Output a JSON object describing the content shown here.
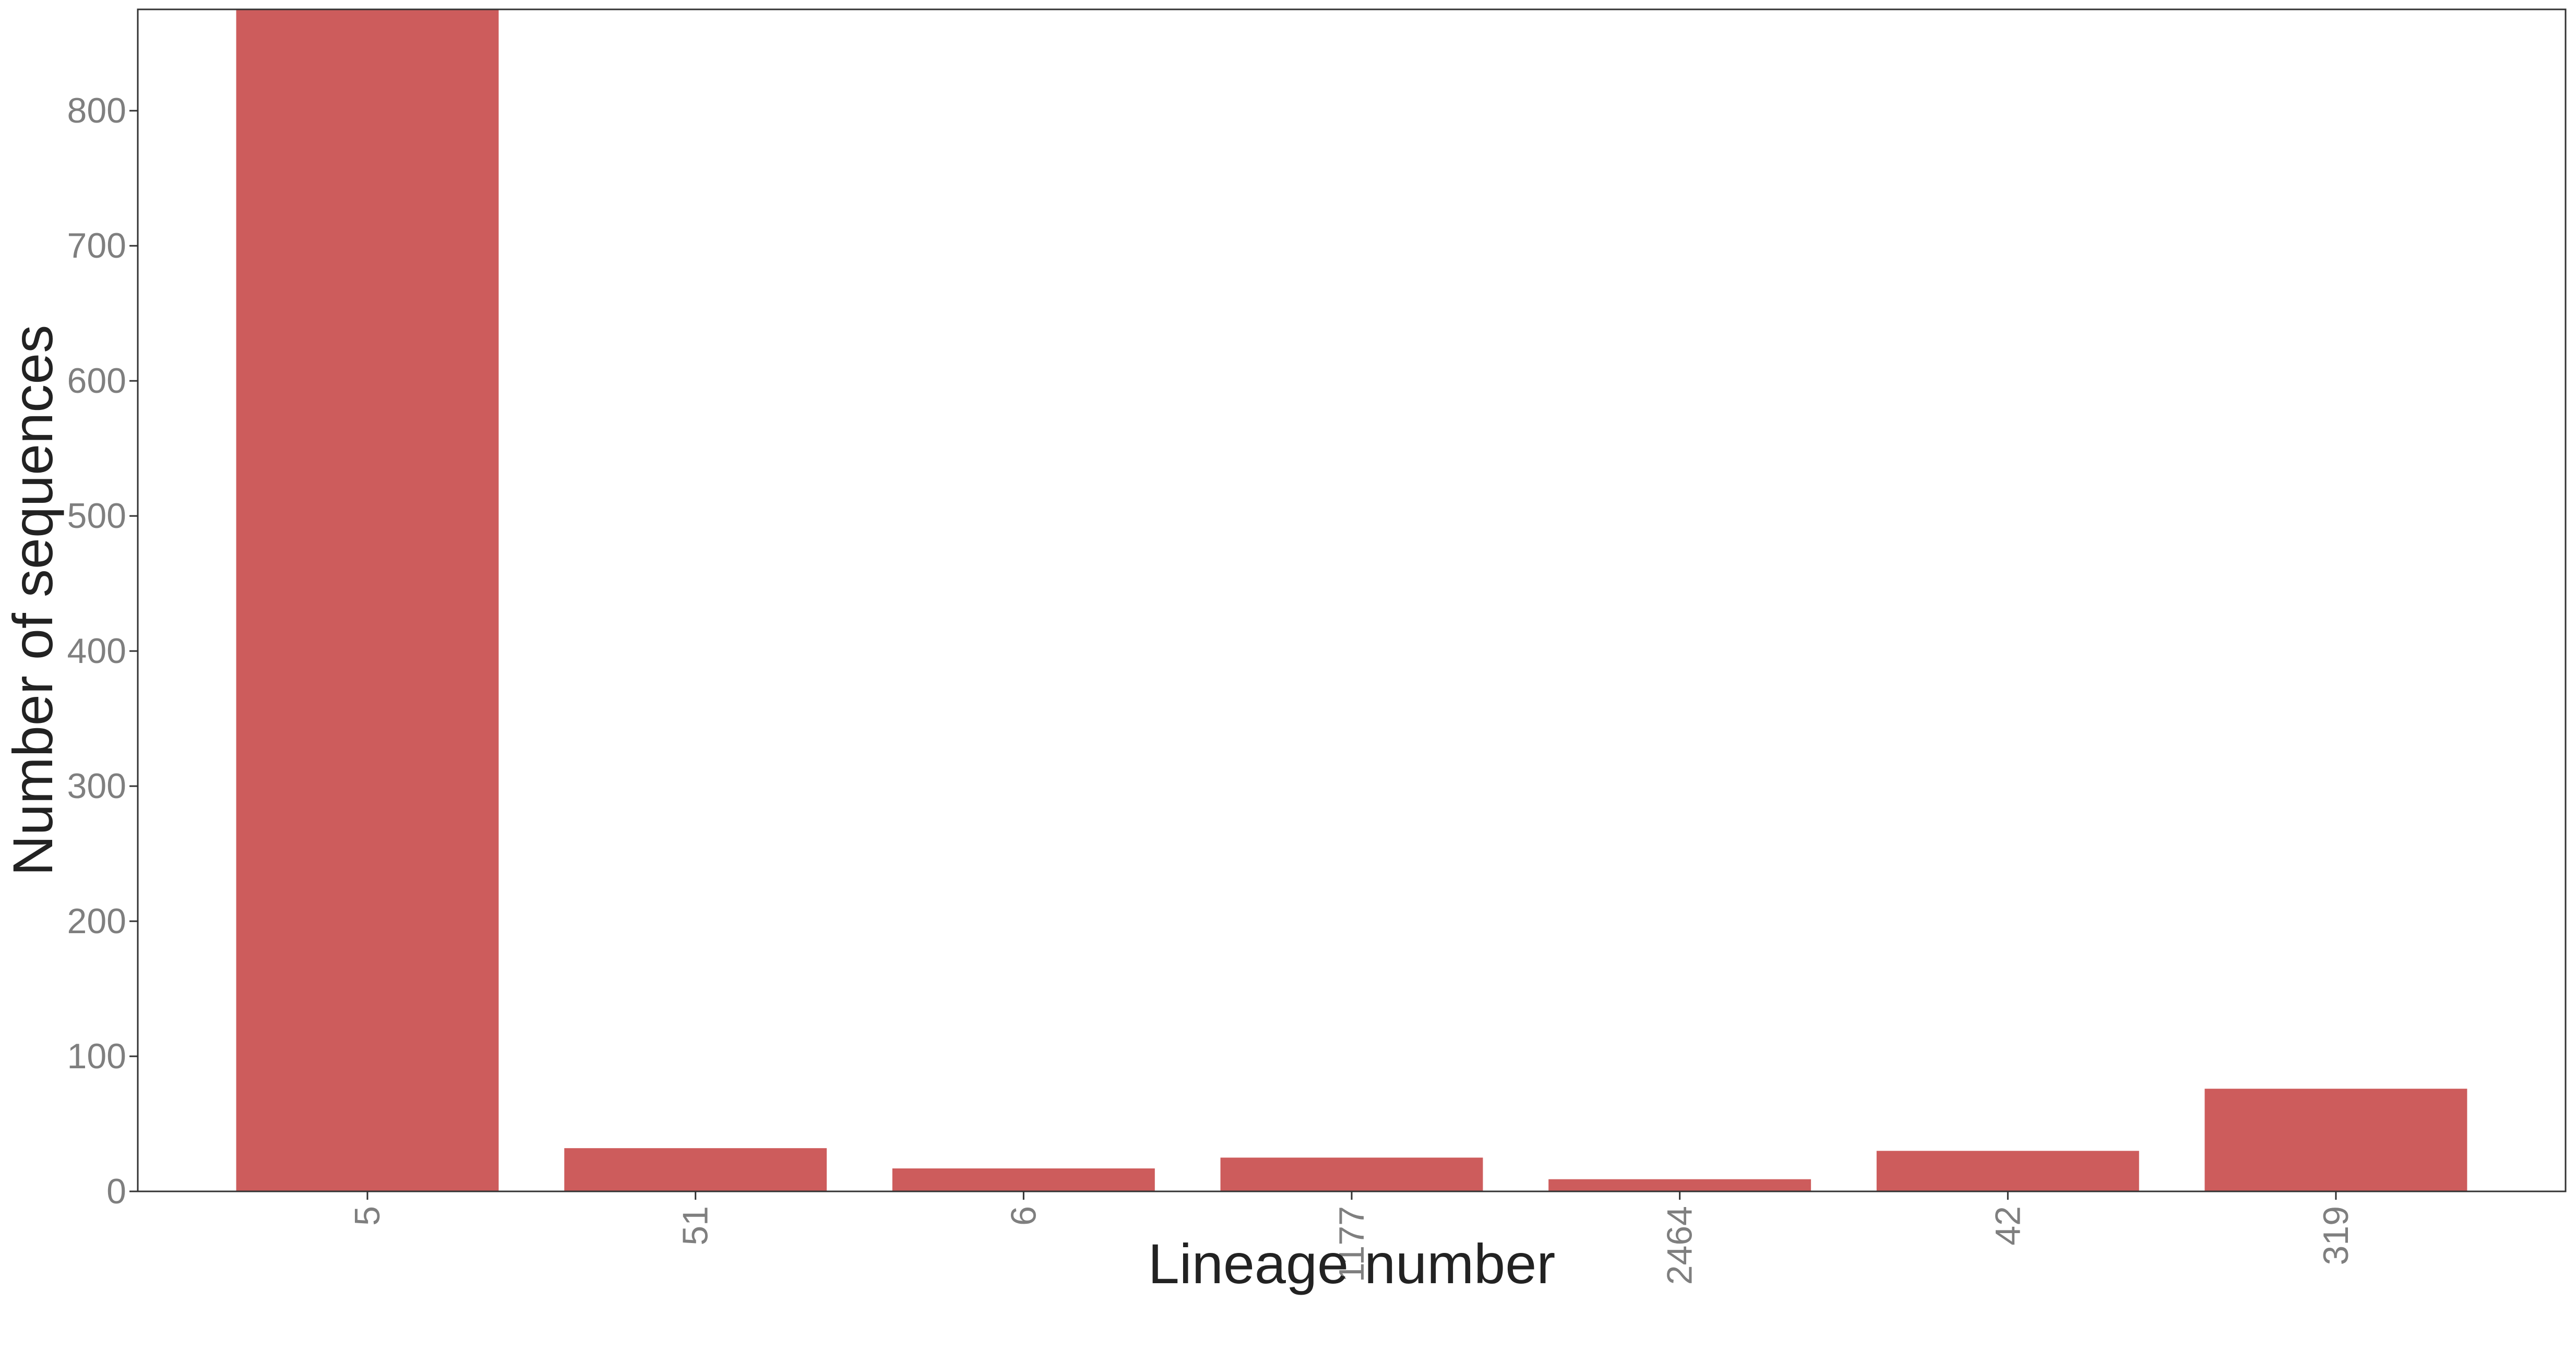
{
  "chart_data": {
    "type": "bar",
    "title": "",
    "xlabel": "Lineage number",
    "ylabel": "Number of sequences",
    "categories": [
      "5",
      "51",
      "6",
      "1177",
      "2464",
      "42",
      "319"
    ],
    "values": [
      875,
      32,
      17,
      25,
      9,
      30,
      76
    ],
    "ylim": [
      0,
      875
    ],
    "yticks": [
      0,
      100,
      200,
      300,
      400,
      500,
      600,
      700,
      800
    ],
    "ytick_labels": [
      "0",
      "100",
      "200",
      "300",
      "400",
      "500",
      "600",
      "700",
      "800"
    ],
    "x_tick_rotation": "vertical",
    "bar_color": "#cd5c5c",
    "grid": false,
    "legend": "none"
  }
}
